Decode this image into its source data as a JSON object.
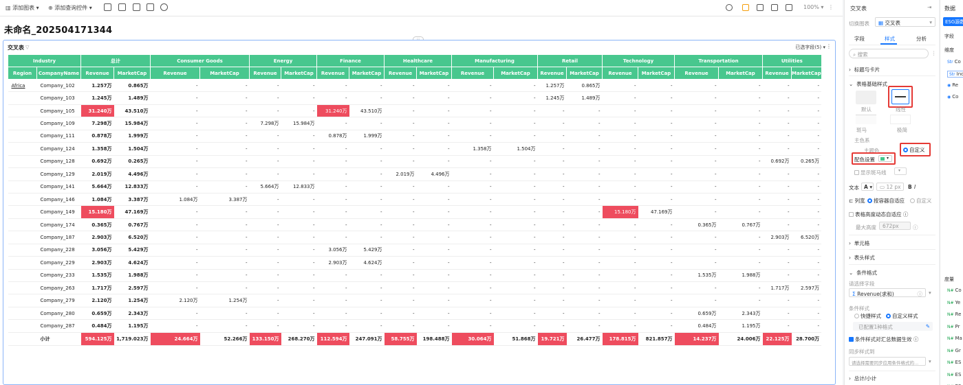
{
  "toolbar": {
    "add_chart": "添加图表",
    "add_filter": "添加查询控件",
    "zoom": "100%"
  },
  "page": {
    "title": "未命名_202504171344"
  },
  "card": {
    "title": "交叉表",
    "selected_fields": "已选字段(5)"
  },
  "table": {
    "industry_header": "Industry",
    "total_header": "总计",
    "region_header": "Region",
    "company_header": "CompanyName",
    "revenue": "Revenue",
    "marketcap": "MarketCap",
    "groups": [
      "Consumer Goods",
      "Energy",
      "Finance",
      "Healthcare",
      "Manufacturing",
      "Retail",
      "Technology",
      "Transportation",
      "Utilities"
    ],
    "rows": [
      {
        "region": "Africa",
        "company": "Company_102",
        "cells": [
          "1.257万",
          "0.865万",
          "-",
          "-",
          "-",
          "-",
          "-",
          "-",
          "-",
          "-",
          "-",
          "-",
          "1.257万",
          "0.865万",
          "-",
          "-",
          "-",
          "-",
          "-",
          "-"
        ]
      },
      {
        "region": "",
        "company": "Company_103",
        "cells": [
          "1.245万",
          "1.489万",
          "-",
          "-",
          "-",
          "-",
          "-",
          "-",
          "-",
          "-",
          "-",
          "-",
          "1.245万",
          "1.489万",
          "-",
          "-",
          "-",
          "-",
          "-",
          "-"
        ]
      },
      {
        "region": "",
        "company": "Company_105",
        "cells": [
          "31.240万",
          "43.510万",
          "-",
          "-",
          "-",
          "-",
          "31.240万",
          "43.510万",
          "-",
          "-",
          "-",
          "-",
          "-",
          "-",
          "-",
          "-",
          "-",
          "-",
          "-",
          "-"
        ]
      },
      {
        "region": "",
        "company": "Company_109",
        "cells": [
          "7.298万",
          "15.984万",
          "-",
          "-",
          "7.298万",
          "15.984万",
          "-",
          "-",
          "-",
          "-",
          "-",
          "-",
          "-",
          "-",
          "-",
          "-",
          "-",
          "-",
          "-",
          "-"
        ]
      },
      {
        "region": "",
        "company": "Company_111",
        "cells": [
          "0.878万",
          "1.999万",
          "-",
          "-",
          "-",
          "-",
          "0.878万",
          "1.999万",
          "-",
          "-",
          "-",
          "-",
          "-",
          "-",
          "-",
          "-",
          "-",
          "-",
          "-",
          "-"
        ]
      },
      {
        "region": "",
        "company": "Company_124",
        "cells": [
          "1.358万",
          "1.504万",
          "-",
          "-",
          "-",
          "-",
          "-",
          "-",
          "-",
          "-",
          "1.358万",
          "1.504万",
          "-",
          "-",
          "-",
          "-",
          "-",
          "-",
          "-",
          "-"
        ]
      },
      {
        "region": "",
        "company": "Company_128",
        "cells": [
          "0.692万",
          "0.265万",
          "-",
          "-",
          "-",
          "-",
          "-",
          "-",
          "-",
          "-",
          "-",
          "-",
          "-",
          "-",
          "-",
          "-",
          "-",
          "-",
          "0.692万",
          "0.265万"
        ]
      },
      {
        "region": "",
        "company": "Company_129",
        "cells": [
          "2.019万",
          "4.496万",
          "-",
          "-",
          "-",
          "-",
          "-",
          "-",
          "2.019万",
          "4.496万",
          "-",
          "-",
          "-",
          "-",
          "-",
          "-",
          "-",
          "-",
          "-",
          "-"
        ]
      },
      {
        "region": "",
        "company": "Company_141",
        "cells": [
          "5.664万",
          "12.833万",
          "-",
          "-",
          "5.664万",
          "12.833万",
          "-",
          "-",
          "-",
          "-",
          "-",
          "-",
          "-",
          "-",
          "-",
          "-",
          "-",
          "-",
          "-",
          "-"
        ]
      },
      {
        "region": "",
        "company": "Company_146",
        "cells": [
          "1.084万",
          "3.387万",
          "1.084万",
          "3.387万",
          "-",
          "-",
          "-",
          "-",
          "-",
          "-",
          "-",
          "-",
          "-",
          "-",
          "-",
          "-",
          "-",
          "-",
          "-",
          "-"
        ]
      },
      {
        "region": "",
        "company": "Company_149",
        "cells": [
          "15.180万",
          "47.169万",
          "-",
          "-",
          "-",
          "-",
          "-",
          "-",
          "-",
          "-",
          "-",
          "-",
          "-",
          "-",
          "15.180万",
          "47.169万",
          "-",
          "-",
          "-",
          "-"
        ]
      },
      {
        "region": "",
        "company": "Company_174",
        "cells": [
          "0.365万",
          "0.767万",
          "-",
          "-",
          "-",
          "-",
          "-",
          "-",
          "-",
          "-",
          "-",
          "-",
          "-",
          "-",
          "-",
          "-",
          "0.365万",
          "0.767万",
          "-",
          "-"
        ]
      },
      {
        "region": "",
        "company": "Company_187",
        "cells": [
          "2.903万",
          "6.520万",
          "-",
          "-",
          "-",
          "-",
          "-",
          "-",
          "-",
          "-",
          "-",
          "-",
          "-",
          "-",
          "-",
          "-",
          "-",
          "-",
          "2.903万",
          "6.520万"
        ]
      },
      {
        "region": "",
        "company": "Company_228",
        "cells": [
          "3.056万",
          "5.429万",
          "-",
          "-",
          "-",
          "-",
          "3.056万",
          "5.429万",
          "-",
          "-",
          "-",
          "-",
          "-",
          "-",
          "-",
          "-",
          "-",
          "-",
          "-",
          "-"
        ]
      },
      {
        "region": "",
        "company": "Company_229",
        "cells": [
          "2.903万",
          "4.624万",
          "-",
          "-",
          "-",
          "-",
          "2.903万",
          "4.624万",
          "-",
          "-",
          "-",
          "-",
          "-",
          "-",
          "-",
          "-",
          "-",
          "-",
          "-",
          "-"
        ]
      },
      {
        "region": "",
        "company": "Company_233",
        "cells": [
          "1.535万",
          "1.988万",
          "-",
          "-",
          "-",
          "-",
          "-",
          "-",
          "-",
          "-",
          "-",
          "-",
          "-",
          "-",
          "-",
          "-",
          "1.535万",
          "1.988万",
          "-",
          "-"
        ]
      },
      {
        "region": "",
        "company": "Company_263",
        "cells": [
          "1.717万",
          "2.597万",
          "-",
          "-",
          "-",
          "-",
          "-",
          "-",
          "-",
          "-",
          "-",
          "-",
          "-",
          "-",
          "-",
          "-",
          "-",
          "-",
          "1.717万",
          "2.597万"
        ]
      },
      {
        "region": "",
        "company": "Company_279",
        "cells": [
          "2.120万",
          "1.254万",
          "2.120万",
          "1.254万",
          "-",
          "-",
          "-",
          "-",
          "-",
          "-",
          "-",
          "-",
          "-",
          "-",
          "-",
          "-",
          "-",
          "-",
          "-",
          "-"
        ]
      },
      {
        "region": "",
        "company": "Company_280",
        "cells": [
          "0.659万",
          "2.343万",
          "-",
          "-",
          "-",
          "-",
          "-",
          "-",
          "-",
          "-",
          "-",
          "-",
          "-",
          "-",
          "-",
          "-",
          "0.659万",
          "2.343万",
          "-",
          "-"
        ]
      },
      {
        "region": "",
        "company": "Company_287",
        "cells": [
          "0.484万",
          "1.195万",
          "-",
          "-",
          "-",
          "-",
          "-",
          "-",
          "-",
          "-",
          "-",
          "-",
          "-",
          "-",
          "-",
          "-",
          "0.484万",
          "1.195万",
          "-",
          "-"
        ]
      }
    ],
    "subtotal": {
      "label": "小计",
      "cells": [
        "594.125万",
        "1,719.023万",
        "24.664万",
        "52.266万",
        "133.150万",
        "268.270万",
        "112.594万",
        "247.091万",
        "58.755万",
        "198.488万",
        "30.064万",
        "51.868万",
        "19.721万",
        "26.477万",
        "178.815万",
        "821.857万",
        "14.237万",
        "24.006万",
        "22.125万",
        "28.700万"
      ]
    }
  },
  "panel": {
    "title": "交叉表",
    "switch_chart_label": "切换图表",
    "chart_type": "交叉表",
    "tabs": [
      "字段",
      "样式",
      "分析"
    ],
    "search_placeholder": "搜索",
    "sec_title_card": "标题与卡片",
    "sec_basic_style": "表格基础样式",
    "style_default": "默认",
    "style_line": "线性",
    "style_zebra": "斑马",
    "style_minimal": "极简",
    "color_scheme": "主色系",
    "main_color": "主题色",
    "custom": "自定义",
    "color_setting": "配色设置",
    "show_zebra": "显示斑马线",
    "text_label": "文本",
    "font_size": "12 px",
    "col_width": "列宽",
    "fit_container": "按容器自适应",
    "col_custom": "自定义",
    "table_height_adapt": "表格高度动态自适应",
    "max_height": "最大高度",
    "max_height_val": "672px",
    "sec_cell": "单元格",
    "sec_header": "表头样式",
    "sec_condition": "条件格式",
    "select_field": "请选择字段",
    "field_value": "Revenue(求和)",
    "condition_style": "条件样式",
    "quick_style": "快捷样式",
    "custom_style": "自定义样式",
    "configured": "已配置1种格式",
    "summary_effective": "条件样式对汇总数据生效",
    "sync_label": "同步样式到",
    "sync_placeholder": "请选择需要同步应用条件格式的...",
    "sec_total": "总计/小计"
  },
  "data_panel": {
    "title": "数据",
    "dataset": "ESG源数据",
    "field_label": "字段",
    "dim_label": "维度",
    "dim_items": [
      "Co",
      "Ind",
      "Re",
      "Co"
    ],
    "measure_label": "度量",
    "measure_items": [
      "Co",
      "Ye",
      "Re",
      "Pr",
      "Ma",
      "Gr",
      "ES",
      "ES",
      "ES"
    ]
  },
  "colors": {
    "header_green": "#48c78e",
    "highlight_red": "#ee4c5e",
    "accent_blue": "#1677ff"
  }
}
